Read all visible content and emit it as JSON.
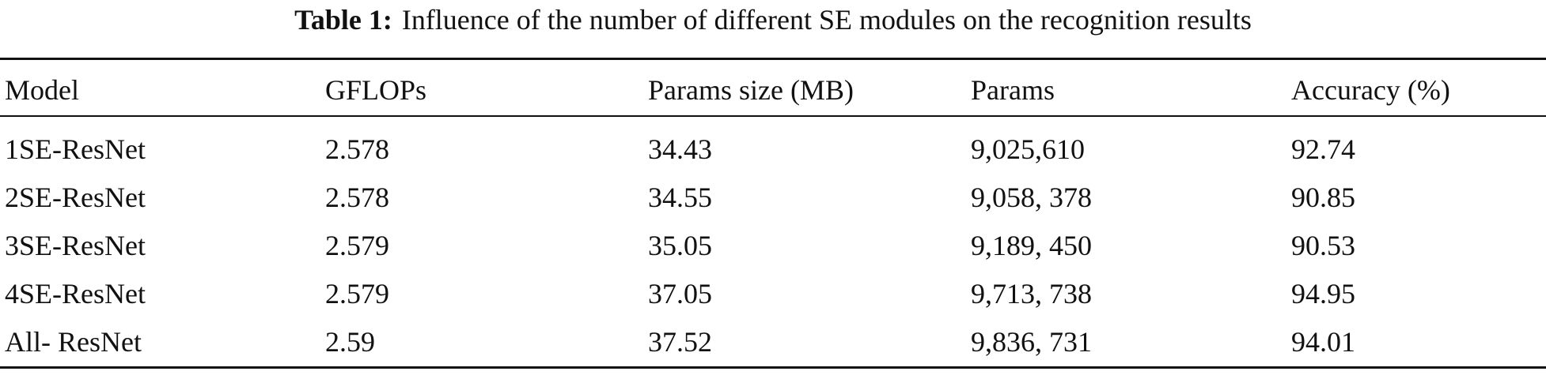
{
  "caption": {
    "label": "Table 1:",
    "text": "Influence of the number of different SE modules on the recognition results"
  },
  "table": {
    "header": [
      "Model",
      "GFLOPs",
      "Params size (MB)",
      "Params",
      "Accuracy (%)"
    ],
    "rows": [
      [
        "1SE-ResNet",
        "2.578",
        "34.43",
        "9,025,610",
        "92.74"
      ],
      [
        "2SE-ResNet",
        "2.578",
        "34.55",
        "9,058, 378",
        "90.85"
      ],
      [
        "3SE-ResNet",
        "2.579",
        "35.05",
        "9,189, 450",
        "90.53"
      ],
      [
        "4SE-ResNet",
        "2.579",
        "37.05",
        "9,713, 738",
        "94.95"
      ],
      [
        "All- ResNet",
        "2.59",
        "37.52",
        "9,836, 731",
        "94.01"
      ]
    ]
  }
}
